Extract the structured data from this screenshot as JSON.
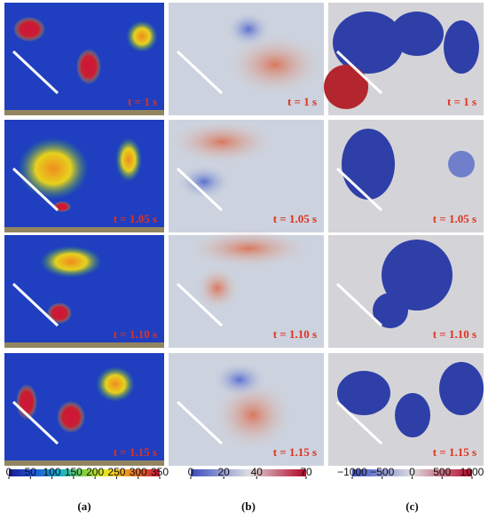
{
  "rows": [
    {
      "time": "t = 1 s"
    },
    {
      "time": "t = 1.05 s"
    },
    {
      "time": "t = 1.10 s"
    },
    {
      "time": "t = 1.15 s"
    }
  ],
  "colorbars": [
    {
      "label": "(a)",
      "lim": [
        0,
        350
      ],
      "ticks": [
        0,
        50,
        100,
        150,
        200,
        250,
        300,
        350
      ]
    },
    {
      "label": "(b)",
      "lim": [
        0,
        70
      ],
      "ticks": [
        0,
        20,
        40,
        70
      ]
    },
    {
      "label": "(c)",
      "lim": [
        -1000,
        1000
      ],
      "ticks": [
        {
          "value": -1000,
          "label": "−1000"
        },
        {
          "value": -500,
          "label": "−500"
        },
        0,
        500,
        1000
      ]
    }
  ]
}
